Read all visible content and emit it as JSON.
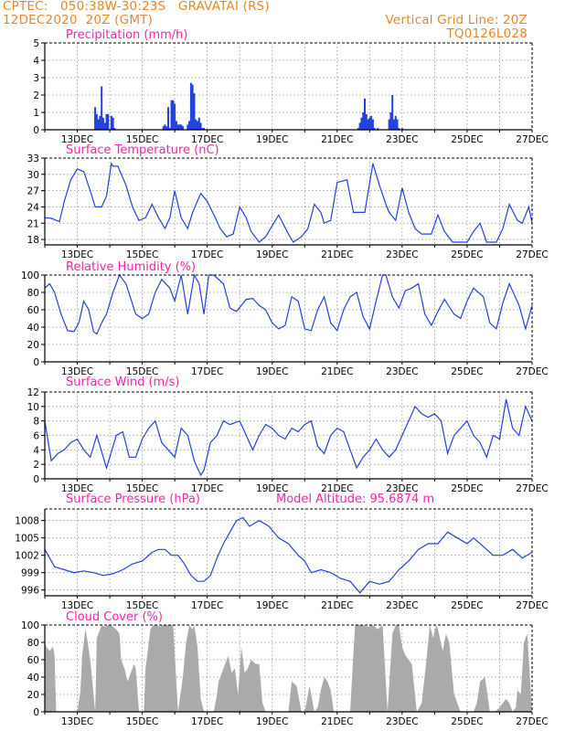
{
  "header": {
    "line1": "CPTEC:   050:38W-30:23S   GRAVATAI (RS)",
    "line2": "12DEC2020  20Z (GMT)",
    "grid_label": "Vertical Grid Line: 20Z",
    "code": "TQ0126L028"
  },
  "colors": {
    "header": "#e8852a",
    "title": "#ff22aa",
    "line": "#2340e0",
    "bar": "#2340e0",
    "cloud": "#aaaaaa",
    "grid": "#909090",
    "axis": "#000000"
  },
  "chart_data": [
    {
      "id": "precip",
      "type": "bar",
      "title": "Precipitation (mm/h)",
      "ylim": [
        0,
        5
      ],
      "yticks": [
        0,
        1,
        2,
        3,
        4,
        5
      ],
      "x_range": [
        12,
        27
      ],
      "xticks": [
        "13DEC",
        "15DEC",
        "17DEC",
        "19DEC",
        "21DEC",
        "23DEC",
        "25DEC",
        "27DEC"
      ],
      "grid": true,
      "x": [
        13.55,
        13.6,
        13.65,
        13.7,
        13.75,
        13.8,
        13.85,
        13.9,
        13.95,
        14.05,
        14.1,
        14.15,
        15.65,
        15.7,
        15.75,
        15.8,
        15.85,
        15.9,
        15.95,
        16.0,
        16.05,
        16.1,
        16.15,
        16.2,
        16.25,
        16.4,
        16.45,
        16.5,
        16.55,
        16.6,
        16.65,
        16.7,
        16.75,
        16.8,
        16.85,
        16.9,
        21.65,
        21.7,
        21.75,
        21.8,
        21.85,
        21.9,
        21.95,
        22.0,
        22.05,
        22.1,
        22.15,
        22.25,
        22.6,
        22.65,
        22.7,
        22.75,
        22.8,
        22.85,
        22.9,
        23.0
      ],
      "values": [
        1.3,
        0.9,
        0.6,
        0.8,
        2.5,
        0.7,
        0.4,
        0.9,
        0.9,
        0.8,
        0.7,
        0.1,
        0.2,
        0.3,
        0.2,
        1.3,
        0.1,
        1.7,
        1.7,
        1.5,
        0.5,
        0.3,
        0.3,
        0.3,
        0.2,
        0.3,
        0.5,
        2.7,
        2.6,
        2.1,
        0.6,
        0.5,
        0.7,
        0.4,
        0.1,
        0.1,
        0.1,
        0.4,
        0.7,
        1.0,
        1.8,
        0.9,
        0.6,
        0.7,
        0.8,
        0.6,
        0.1,
        0.1,
        0.6,
        1.0,
        2.0,
        0.6,
        0.8,
        0.6,
        0.1,
        0.1
      ]
    },
    {
      "id": "temp",
      "type": "line",
      "title": "Surface Temperature (nC)",
      "ylim": [
        17,
        33
      ],
      "yticks": [
        18,
        21,
        24,
        27,
        30,
        33
      ],
      "x_range": [
        12,
        27
      ],
      "xticks": [
        "13DEC",
        "15DEC",
        "17DEC",
        "19DEC",
        "21DEC",
        "23DEC",
        "25DEC",
        "27DEC"
      ],
      "grid": true,
      "x": [
        12.0,
        12.2,
        12.45,
        12.6,
        12.8,
        13.0,
        13.2,
        13.4,
        13.55,
        13.75,
        13.9,
        14.05,
        14.1,
        14.25,
        14.5,
        14.7,
        14.9,
        15.1,
        15.3,
        15.5,
        15.7,
        15.85,
        16.0,
        16.2,
        16.4,
        16.55,
        16.8,
        17.0,
        17.25,
        17.4,
        17.6,
        17.8,
        18.0,
        18.2,
        18.35,
        18.6,
        18.8,
        19.0,
        19.2,
        19.5,
        19.65,
        19.9,
        20.1,
        20.3,
        20.5,
        20.6,
        20.7,
        20.8,
        21.0,
        21.3,
        21.5,
        21.65,
        21.85,
        22.1,
        22.3,
        22.5,
        22.6,
        22.8,
        23.0,
        23.2,
        23.4,
        23.6,
        23.9,
        24.1,
        24.3,
        24.55,
        24.8,
        25.0,
        25.2,
        25.4,
        25.6,
        25.9,
        26.1,
        26.3,
        26.55,
        26.7,
        26.9,
        27.0
      ],
      "values": [
        22.0,
        21.9,
        21.3,
        25.0,
        29.0,
        31.0,
        30.5,
        27.0,
        24.0,
        24.0,
        26.0,
        32.0,
        31.5,
        31.5,
        28.0,
        24.0,
        21.5,
        22.0,
        24.5,
        22.0,
        20.0,
        22.0,
        27.0,
        22.0,
        20.0,
        23.0,
        26.5,
        25.0,
        22.0,
        20.0,
        18.5,
        19.0,
        24.0,
        22.0,
        19.5,
        17.5,
        18.5,
        20.5,
        22.5,
        19.0,
        17.5,
        18.5,
        20.0,
        24.5,
        23.0,
        21.0,
        21.3,
        21.5,
        28.5,
        29.0,
        23.0,
        23.0,
        23.0,
        32.0,
        28.0,
        24.5,
        23.0,
        21.5,
        27.5,
        23.0,
        20.0,
        19.0,
        19.0,
        22.5,
        19.5,
        17.5,
        17.5,
        17.5,
        19.5,
        21.0,
        17.5,
        17.5,
        20.0,
        24.5,
        21.5,
        21.0,
        24.0,
        21.0
      ]
    },
    {
      "id": "humid",
      "type": "line",
      "title": "Relative Humidity (%)",
      "ylim": [
        0,
        100
      ],
      "yticks": [
        0,
        20,
        40,
        60,
        80,
        100
      ],
      "x_range": [
        12,
        27
      ],
      "xticks": [
        "13DEC",
        "15DEC",
        "17DEC",
        "19DEC",
        "21DEC",
        "23DEC",
        "25DEC",
        "27DEC"
      ],
      "grid": true,
      "x": [
        12.0,
        12.15,
        12.3,
        12.5,
        12.7,
        12.9,
        13.05,
        13.2,
        13.35,
        13.5,
        13.6,
        13.75,
        13.9,
        14.1,
        14.3,
        14.5,
        14.8,
        15.0,
        15.2,
        15.4,
        15.6,
        15.85,
        16.0,
        16.2,
        16.4,
        16.6,
        16.75,
        16.9,
        17.05,
        17.2,
        17.5,
        17.7,
        17.9,
        18.2,
        18.4,
        18.6,
        18.8,
        19.0,
        19.2,
        19.4,
        19.6,
        19.8,
        20.0,
        20.2,
        20.4,
        20.6,
        20.8,
        21.0,
        21.2,
        21.4,
        21.6,
        21.8,
        22.0,
        22.2,
        22.4,
        22.5,
        22.7,
        22.9,
        23.1,
        23.3,
        23.5,
        23.7,
        23.9,
        24.1,
        24.3,
        24.6,
        24.8,
        25.0,
        25.2,
        25.5,
        25.7,
        25.9,
        26.1,
        26.3,
        26.6,
        26.8,
        27.0
      ],
      "values": [
        85,
        90,
        80,
        55,
        36,
        35,
        45,
        70,
        60,
        35,
        32,
        45,
        55,
        80,
        100,
        90,
        55,
        50,
        55,
        80,
        95,
        85,
        70,
        100,
        55,
        100,
        90,
        55,
        100,
        100,
        90,
        62,
        58,
        72,
        73,
        65,
        60,
        45,
        38,
        42,
        75,
        70,
        38,
        36,
        60,
        75,
        45,
        36,
        60,
        75,
        80,
        52,
        38,
        70,
        100,
        100,
        75,
        62,
        82,
        85,
        90,
        55,
        42,
        58,
        72,
        55,
        50,
        70,
        85,
        75,
        45,
        38,
        68,
        90,
        65,
        38,
        65
      ]
    },
    {
      "id": "wind",
      "type": "line",
      "title": "Surface Wind (m/s)",
      "ylim": [
        0,
        12
      ],
      "yticks": [
        0,
        2,
        4,
        6,
        8,
        10,
        12
      ],
      "x_range": [
        12,
        27
      ],
      "xticks": [
        "13DEC",
        "15DEC",
        "17DEC",
        "19DEC",
        "21DEC",
        "23DEC",
        "25DEC",
        "27DEC"
      ],
      "grid": true,
      "x": [
        12.0,
        12.2,
        12.4,
        12.6,
        12.8,
        13.0,
        13.2,
        13.4,
        13.6,
        13.8,
        13.9,
        14.0,
        14.2,
        14.4,
        14.6,
        14.8,
        15.0,
        15.2,
        15.4,
        15.6,
        15.8,
        16.0,
        16.2,
        16.4,
        16.6,
        16.7,
        16.8,
        16.9,
        17.1,
        17.3,
        17.5,
        17.7,
        18.0,
        18.2,
        18.4,
        18.6,
        18.8,
        19.0,
        19.2,
        19.4,
        19.6,
        19.8,
        20.0,
        20.2,
        20.4,
        20.6,
        20.8,
        21.0,
        21.2,
        21.4,
        21.6,
        21.8,
        22.0,
        22.2,
        22.4,
        22.6,
        22.8,
        23.0,
        23.2,
        23.4,
        23.6,
        23.8,
        24.0,
        24.2,
        24.4,
        24.6,
        24.8,
        25.0,
        25.2,
        25.4,
        25.6,
        25.8,
        26.0,
        26.2,
        26.4,
        26.6,
        26.8,
        27.0
      ],
      "values": [
        8,
        2.5,
        3.5,
        4,
        5,
        5.5,
        4,
        3,
        6,
        3,
        1.5,
        3,
        6,
        6.5,
        3,
        3,
        5.5,
        7,
        8,
        5,
        4,
        3,
        7,
        6,
        2.5,
        1.5,
        0.5,
        1.2,
        5,
        6,
        8,
        7.5,
        8,
        6,
        4,
        6,
        7.5,
        7,
        6,
        5.5,
        7,
        6.5,
        7.5,
        8,
        4.5,
        3.5,
        6,
        7,
        6.5,
        4,
        1.5,
        3,
        4,
        5.5,
        4,
        3,
        4,
        6,
        8,
        10,
        9,
        8.5,
        9,
        8,
        3.5,
        6,
        7,
        8,
        6,
        5,
        3,
        6,
        5.5,
        11,
        7,
        6,
        10,
        8
      ]
    },
    {
      "id": "pressure",
      "type": "line",
      "title": "Surface Pressure (hPa)",
      "subtitle": "Model Altitude: 95.6874 m",
      "ylim": [
        995,
        1010
      ],
      "yticks": [
        996,
        999,
        1002,
        1005,
        1008
      ],
      "x_range": [
        12,
        27
      ],
      "xticks": [
        "13DEC",
        "15DEC",
        "17DEC",
        "19DEC",
        "21DEC",
        "23DEC",
        "25DEC",
        "27DEC"
      ],
      "grid": true,
      "x": [
        12.0,
        12.3,
        12.6,
        12.9,
        13.2,
        13.5,
        13.8,
        14.1,
        14.4,
        14.7,
        15.0,
        15.3,
        15.5,
        15.7,
        15.9,
        16.1,
        16.3,
        16.5,
        16.7,
        16.9,
        17.1,
        17.3,
        17.5,
        17.7,
        17.9,
        18.1,
        18.3,
        18.6,
        18.9,
        19.2,
        19.5,
        19.8,
        20.0,
        20.2,
        20.5,
        20.8,
        21.1,
        21.4,
        21.7,
        22.0,
        22.3,
        22.6,
        22.9,
        23.2,
        23.5,
        23.8,
        24.1,
        24.4,
        24.7,
        25.0,
        25.2,
        25.5,
        25.8,
        26.1,
        26.4,
        26.7,
        27.0
      ],
      "values": [
        1003,
        1000,
        999.5,
        999,
        999.3,
        999,
        998.5,
        998.8,
        999.5,
        1000.5,
        1001,
        1002.5,
        1003,
        1003,
        1002,
        1002,
        1000.5,
        998.5,
        997.5,
        997.5,
        998.5,
        1001.5,
        1004,
        1006,
        1008,
        1008.5,
        1007,
        1008,
        1007,
        1005,
        1004,
        1002,
        1001,
        999,
        999.5,
        999,
        998,
        997.5,
        995.5,
        997.5,
        997,
        997.5,
        999.5,
        1001,
        1003,
        1004,
        1004,
        1006,
        1005,
        1004,
        1005,
        1003.5,
        1002,
        1002,
        1003,
        1001.5,
        1002.5
      ]
    },
    {
      "id": "cloud",
      "type": "area",
      "title": "Cloud Cover (%)",
      "ylim": [
        0,
        100
      ],
      "yticks": [
        0,
        20,
        40,
        60,
        80,
        100
      ],
      "x_range": [
        12,
        27
      ],
      "xticks": [
        "13DEC",
        "15DEC",
        "17DEC",
        "19DEC",
        "21DEC",
        "23DEC",
        "25DEC",
        "27DEC"
      ],
      "grid": true,
      "x": [
        12.0,
        12.05,
        12.15,
        12.25,
        12.3,
        12.35,
        12.6,
        12.75,
        12.85,
        13.0,
        13.1,
        13.15,
        13.25,
        13.3,
        13.4,
        13.55,
        13.6,
        13.75,
        13.85,
        13.95,
        14.05,
        14.1,
        14.2,
        14.3,
        14.35,
        14.45,
        14.55,
        14.6,
        14.75,
        14.8,
        14.9,
        15.05,
        15.1,
        15.25,
        15.35,
        15.45,
        15.55,
        15.6,
        15.7,
        15.8,
        15.95,
        16.1,
        16.25,
        16.35,
        16.45,
        16.55,
        16.6,
        16.7,
        16.8,
        16.9,
        17.0,
        17.1,
        17.2,
        17.3,
        17.35,
        17.45,
        17.55,
        17.65,
        17.75,
        17.85,
        17.95,
        18.05,
        18.15,
        18.25,
        18.35,
        18.5,
        18.6,
        18.7,
        18.8,
        18.9,
        19.0,
        19.2,
        19.35,
        19.5,
        19.6,
        19.75,
        19.9,
        20.0,
        20.15,
        20.3,
        20.4,
        20.5,
        20.6,
        20.7,
        20.8,
        20.9,
        21.0,
        21.1,
        21.2,
        21.3,
        21.4,
        21.55,
        21.7,
        21.8,
        21.95,
        22.1,
        22.25,
        22.4,
        22.55,
        22.7,
        22.8,
        22.9,
        23.0,
        23.1,
        23.2,
        23.3,
        23.45,
        23.6,
        23.75,
        23.85,
        23.95,
        24.05,
        24.1,
        24.25,
        24.35,
        24.45,
        24.6,
        24.8,
        25.0,
        25.2,
        25.3,
        25.4,
        25.55,
        25.7,
        25.85,
        26.0,
        26.1,
        26.2,
        26.3,
        26.4,
        26.5,
        26.55,
        26.65,
        26.75,
        26.85,
        27.0
      ],
      "values": [
        80,
        75,
        70,
        75,
        65,
        0,
        0,
        0,
        0,
        0,
        25,
        65,
        95,
        85,
        60,
        0,
        85,
        100,
        98,
        100,
        100,
        98,
        95,
        90,
        60,
        50,
        35,
        40,
        55,
        50,
        0,
        0,
        50,
        95,
        100,
        100,
        98,
        100,
        100,
        100,
        100,
        0,
        40,
        80,
        100,
        95,
        100,
        75,
        15,
        0,
        0,
        0,
        0,
        20,
        35,
        45,
        55,
        65,
        45,
        50,
        20,
        75,
        45,
        50,
        60,
        55,
        55,
        10,
        0,
        0,
        0,
        0,
        0,
        0,
        35,
        30,
        0,
        0,
        30,
        0,
        5,
        25,
        40,
        35,
        25,
        0,
        0,
        0,
        0,
        0,
        0,
        100,
        100,
        100,
        98,
        100,
        95,
        100,
        0,
        90,
        100,
        100,
        75,
        65,
        60,
        55,
        0,
        10,
        60,
        100,
        85,
        100,
        95,
        70,
        90,
        80,
        20,
        0,
        0,
        0,
        10,
        35,
        40,
        0,
        0,
        5,
        10,
        15,
        10,
        0,
        5,
        25,
        20,
        80,
        90,
        0
      ]
    }
  ]
}
